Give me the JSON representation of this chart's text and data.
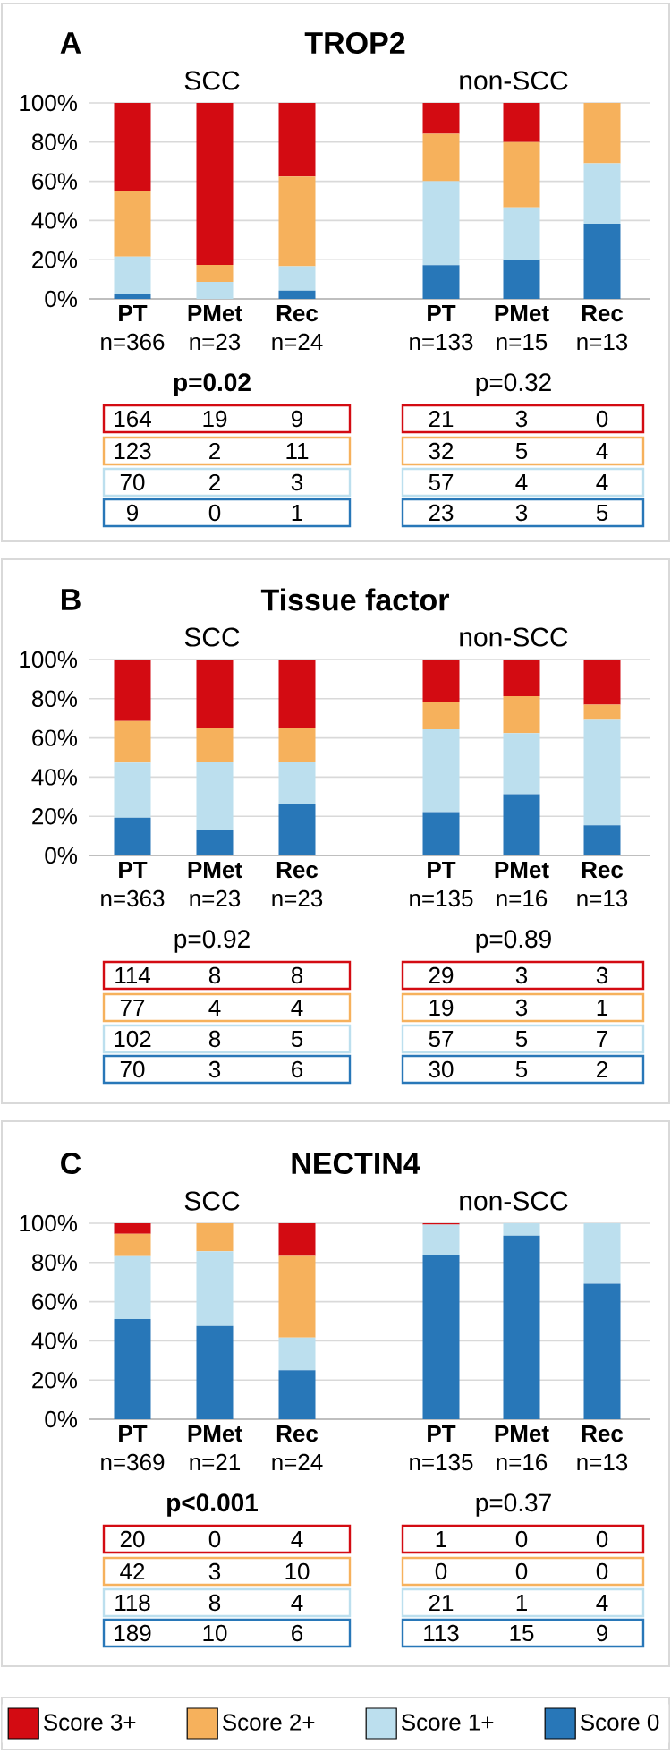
{
  "chart_data": [
    {
      "type": "bar",
      "stacked": true,
      "title": "TROP2",
      "subtitle": "SCC",
      "annotations": [
        "A",
        "**p=0.02**",
        "164",
        "19",
        "9",
        "123",
        "2",
        "11",
        "70",
        "2",
        "3",
        "9",
        "0",
        "1"
      ],
      "categories": [
        "**PT** n=366",
        "**PMet** n=23",
        "**Rec** n=24"
      ],
      "ylim": [
        0,
        100
      ],
      "yticks": [
        {
          "value": 0,
          "label": "0%"
        },
        {
          "value": 20,
          "label": "20%"
        },
        {
          "value": 40,
          "label": "40%"
        },
        {
          "value": 60,
          "label": "60%"
        },
        {
          "value": 80,
          "label": "80%"
        },
        {
          "value": 100,
          "label": "100%"
        }
      ],
      "grid": "y",
      "series": [
        {
          "color": "#2877b8",
          "values": [
            2.5,
            0,
            4.2
          ]
        },
        {
          "color": "#bcdfee",
          "values": [
            19.1,
            8.7,
            12.5
          ]
        },
        {
          "color": "#f6b15c",
          "values": [
            33.6,
            8.7,
            45.8
          ]
        },
        {
          "color": "#d30b12",
          "values": [
            44.8,
            82.6,
            37.5
          ]
        }
      ]
    },
    {
      "type": "bar",
      "stacked": true,
      "subtitle": "non-SCC",
      "annotations": [
        "p=0.32",
        "21",
        "3",
        "0",
        "32",
        "5",
        "4",
        "57",
        "4",
        "4",
        "23",
        "3",
        "5"
      ],
      "categories": [
        "**PT** n=133",
        "**PMet** n=15",
        "**Rec** n=13"
      ],
      "ylim": [
        0,
        100
      ],
      "yticks": [
        {
          "value": 0,
          "label": null
        },
        {
          "value": 20,
          "label": null
        },
        {
          "value": 40,
          "label": null
        },
        {
          "value": 60,
          "label": null
        },
        {
          "value": 80,
          "label": null
        },
        {
          "value": 100,
          "label": null
        }
      ],
      "tick_labels": "x",
      "grid": "y",
      "series": [
        {
          "color": "#2877b8",
          "values": [
            17.2,
            20,
            38.4
          ]
        },
        {
          "color": "#bcdfee",
          "values": [
            42.9,
            26.7,
            30.8
          ]
        },
        {
          "color": "#f6b15c",
          "values": [
            24.1,
            33.3,
            30.8
          ]
        },
        {
          "color": "#d30b12",
          "values": [
            15.8,
            20,
            0
          ]
        }
      ]
    },
    {
      "type": "bar",
      "stacked": true,
      "title": "Tissue factor",
      "subtitle": "SCC",
      "annotations": [
        "B",
        "p=0.92",
        "114",
        "8",
        "8",
        "77",
        "4",
        "4",
        "102",
        "8",
        "5",
        "70",
        "3",
        "6"
      ],
      "categories": [
        "**PT** n=363",
        "**PMet** n=23",
        "**Rec** n=23"
      ],
      "ylim": [
        0,
        100
      ],
      "yticks": [
        {
          "value": 0,
          "label": "0%"
        },
        {
          "value": 20,
          "label": "20%"
        },
        {
          "value": 40,
          "label": "40%"
        },
        {
          "value": 60,
          "label": "60%"
        },
        {
          "value": 80,
          "label": "80%"
        },
        {
          "value": 100,
          "label": "100%"
        }
      ],
      "grid": "y",
      "series": [
        {
          "color": "#2877b8",
          "values": [
            19.3,
            13,
            26.1
          ]
        },
        {
          "color": "#bcdfee",
          "values": [
            28.1,
            34.8,
            21.7
          ]
        },
        {
          "color": "#f6b15c",
          "values": [
            21.2,
            17.4,
            17.4
          ]
        },
        {
          "color": "#d30b12",
          "values": [
            31.4,
            34.8,
            34.8
          ]
        }
      ]
    },
    {
      "type": "bar",
      "stacked": true,
      "subtitle": "non-SCC",
      "annotations": [
        "p=0.89",
        "29",
        "3",
        "3",
        "19",
        "3",
        "1",
        "57",
        "5",
        "7",
        "30",
        "5",
        "2"
      ],
      "categories": [
        "**PT** n=135",
        "**PMet** n=16",
        "**Rec** n=13"
      ],
      "ylim": [
        0,
        100
      ],
      "yticks": [
        {
          "value": 0,
          "label": null
        },
        {
          "value": 20,
          "label": null
        },
        {
          "value": 40,
          "label": null
        },
        {
          "value": 60,
          "label": null
        },
        {
          "value": 80,
          "label": null
        },
        {
          "value": 100,
          "label": null
        }
      ],
      "tick_labels": "x",
      "grid": "y",
      "series": [
        {
          "color": "#2877b8",
          "values": [
            22.2,
            31.25,
            15.4
          ]
        },
        {
          "color": "#bcdfee",
          "values": [
            42.2,
            31.25,
            53.8
          ]
        },
        {
          "color": "#f6b15c",
          "values": [
            14.1,
            18.75,
            7.7
          ]
        },
        {
          "color": "#d30b12",
          "values": [
            21.5,
            18.75,
            23.1
          ]
        }
      ]
    },
    {
      "type": "bar",
      "stacked": true,
      "title": "NECTIN4",
      "subtitle": "SCC",
      "annotations": [
        "C",
        "**p<0.001**",
        "20",
        "0",
        "4",
        "42",
        "3",
        "10",
        "118",
        "8",
        "4",
        "189",
        "10",
        "6"
      ],
      "categories": [
        "**PT** n=369",
        "**PMet** n=21",
        "**Rec** n=24"
      ],
      "ylim": [
        0,
        100
      ],
      "yticks": [
        {
          "value": 0,
          "label": "0%"
        },
        {
          "value": 20,
          "label": "20%"
        },
        {
          "value": 40,
          "label": "40%"
        },
        {
          "value": 60,
          "label": "60%"
        },
        {
          "value": 80,
          "label": "80%"
        },
        {
          "value": 100,
          "label": "100%"
        }
      ],
      "grid": "y",
      "series": [
        {
          "color": "#2877b8",
          "values": [
            51.2,
            47.6,
            25
          ]
        },
        {
          "color": "#bcdfee",
          "values": [
            32,
            38.1,
            16.7
          ]
        },
        {
          "color": "#f6b15c",
          "values": [
            11.4,
            14.3,
            41.7
          ]
        },
        {
          "color": "#d30b12",
          "values": [
            5.4,
            0,
            16.6
          ]
        }
      ]
    },
    {
      "type": "bar",
      "stacked": true,
      "subtitle": "non-SCC",
      "annotations": [
        "p=0.37",
        "1",
        "0",
        "0",
        "0",
        "0",
        "0",
        "21",
        "1",
        "4",
        "113",
        "15",
        "9"
      ],
      "categories": [
        "**PT** n=135",
        "**PMet** n=16",
        "**Rec** n=13"
      ],
      "ylim": [
        0,
        100
      ],
      "yticks": [
        {
          "value": 0,
          "label": null
        },
        {
          "value": 20,
          "label": null
        },
        {
          "value": 40,
          "label": null
        },
        {
          "value": 60,
          "label": null
        },
        {
          "value": 80,
          "label": null
        },
        {
          "value": 100,
          "label": null
        }
      ],
      "tick_labels": "x",
      "grid": "y",
      "legend": "bottom",
      "series": [
        {
          "name": "Score 0",
          "color": "#2877b8",
          "values": [
            83.7,
            93.75,
            69.2
          ]
        },
        {
          "name": "Score 1+",
          "color": "#bcdfee",
          "values": [
            15.6,
            6.25,
            30.8
          ]
        },
        {
          "name": "Score 2+",
          "color": "#f6b15c",
          "values": [
            0,
            0,
            0
          ]
        },
        {
          "name": "Score 3+",
          "color": "#d30b12",
          "values": [
            0.7,
            0,
            0
          ]
        }
      ]
    }
  ]
}
